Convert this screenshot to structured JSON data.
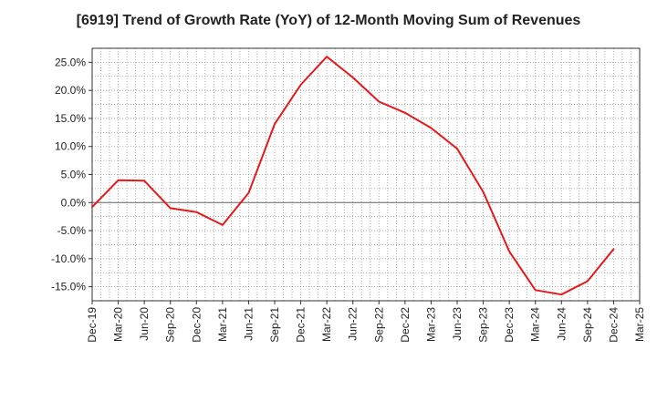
{
  "chart_data": {
    "type": "line",
    "title": "[6919]  Trend of Growth Rate (YoY) of 12-Month Moving Sum of Revenues",
    "xlabel": "",
    "ylabel": "",
    "x_tick_labels": [
      "Dec-19",
      "Mar-20",
      "Jun-20",
      "Sep-20",
      "Dec-20",
      "Mar-21",
      "Jun-21",
      "Sep-21",
      "Dec-21",
      "Mar-22",
      "Jun-22",
      "Sep-22",
      "Dec-22",
      "Mar-23",
      "Jun-23",
      "Sep-23",
      "Dec-23",
      "Mar-24",
      "Jun-24",
      "Sep-24",
      "Dec-24",
      "Mar-25"
    ],
    "y_tick_values": [
      25,
      20,
      15,
      10,
      5,
      0,
      -5,
      -10,
      -15
    ],
    "y_tick_labels": [
      "25.0%",
      "20.0%",
      "15.0%",
      "10.0%",
      "5.0%",
      "0.0%",
      "-5.0%",
      "-10.0%",
      "-15.0%"
    ],
    "ylim": [
      -17.5,
      27.5
    ],
    "grid": true,
    "series": [
      {
        "color": "#e31a1c",
        "x": [
          "Dec-19",
          "Mar-20",
          "Jun-20",
          "Sep-20",
          "Dec-20",
          "Mar-21",
          "Jun-21",
          "Sep-21",
          "Dec-21",
          "Mar-22",
          "Jun-22",
          "Sep-22",
          "Dec-22",
          "Mar-23",
          "Jun-23",
          "Sep-23",
          "Dec-23",
          "Mar-24",
          "Jun-24",
          "Sep-24",
          "Dec-24"
        ],
        "values": [
          -0.8,
          4.0,
          3.9,
          -1.0,
          -1.7,
          -4.0,
          1.7,
          14.0,
          21.0,
          26.0,
          22.3,
          18.0,
          16.0,
          13.3,
          9.6,
          1.9,
          -8.7,
          -15.6,
          -16.4,
          -14.0,
          -8.3
        ]
      }
    ]
  }
}
